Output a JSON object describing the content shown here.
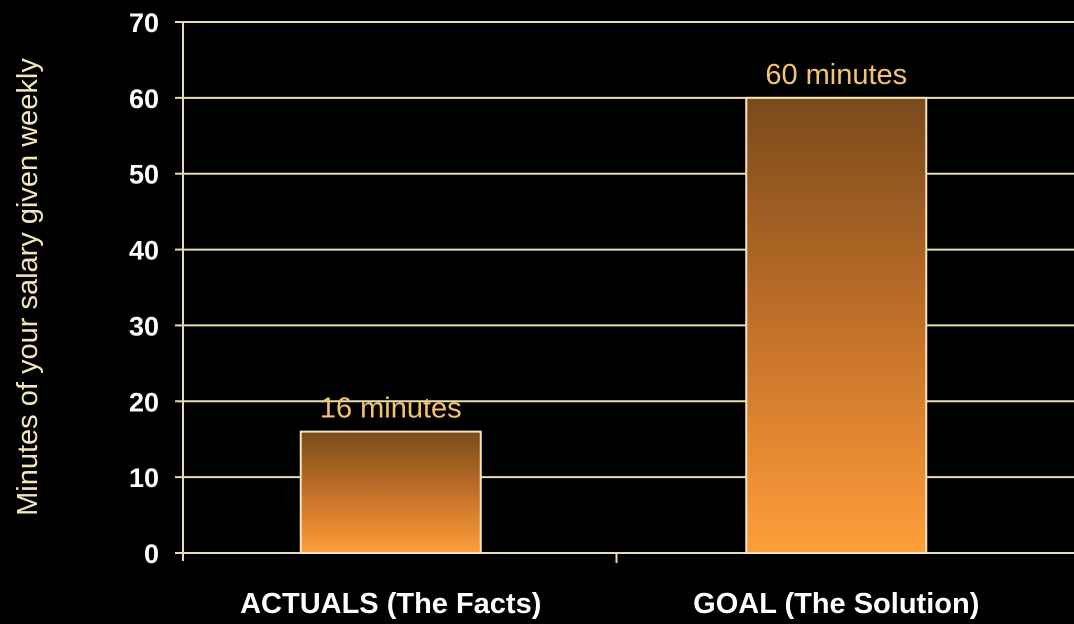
{
  "colors": {
    "background": "#000000",
    "axis_text": "#ffffff",
    "ylabel_text": "#f2e6b8",
    "gridline": "#e8dcb0",
    "data_label": "#f4c46a",
    "bar_top": "#7a4a1c",
    "bar_bottom": "#ff9e3a",
    "bar_outline": "#f4e4c0"
  },
  "chart_data": {
    "type": "bar",
    "title": "",
    "xlabel": "",
    "ylabel": "Minutes of your salary given weekly",
    "categories": [
      "ACTUALS (The Facts)",
      "GOAL (The Solution)"
    ],
    "values": [
      16,
      60
    ],
    "data_labels": [
      "16 minutes",
      "60 minutes"
    ],
    "ylim": [
      0,
      70
    ],
    "yticks": [
      0,
      10,
      20,
      30,
      40,
      50,
      60,
      70
    ],
    "grid": true,
    "legend": "none"
  }
}
